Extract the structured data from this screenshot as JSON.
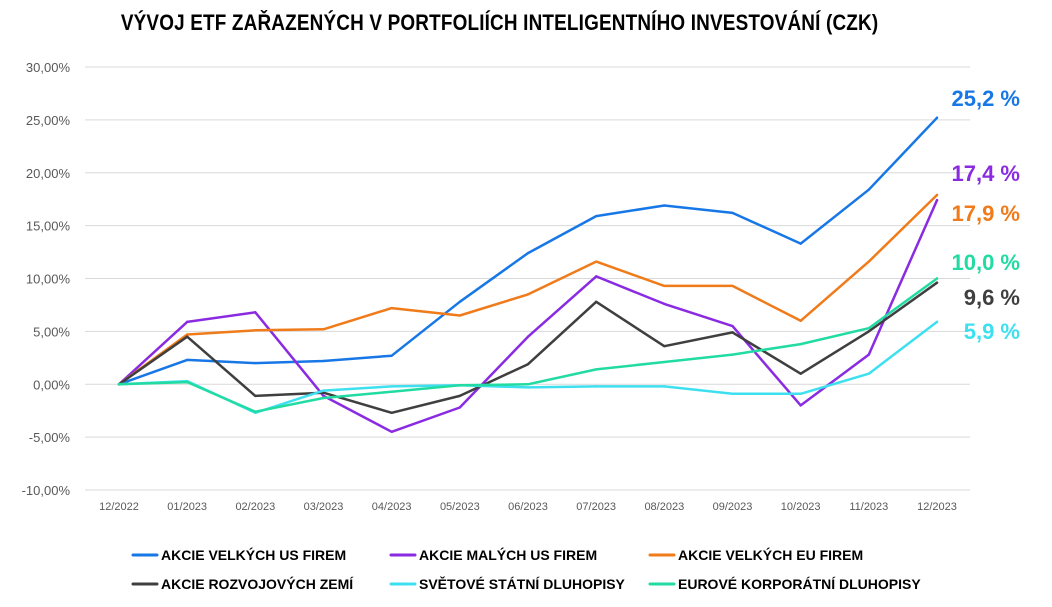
{
  "title": "VÝVOJ ETF ZAŘAZENÝCH V PORTFOLIÍCH INTELIGENTNÍHO INVESTOVÁNÍ (CZK)",
  "chart_data": {
    "type": "line",
    "title": "VÝVOJ ETF ZAŘAZENÝCH V PORTFOLIÍCH INTELIGENTNÍHO INVESTOVÁNÍ (CZK)",
    "xlabel": "",
    "ylabel": "",
    "categories": [
      "12/2022",
      "01/2023",
      "02/2023",
      "03/2023",
      "04/2023",
      "05/2023",
      "06/2023",
      "07/2023",
      "08/2023",
      "09/2023",
      "10/2023",
      "11/2023",
      "12/2023"
    ],
    "ylim": [
      -10,
      30
    ],
    "yticks": [
      30,
      25,
      20,
      15,
      10,
      5,
      0,
      -5,
      -10
    ],
    "ytick_labels": [
      "30,00%",
      "25,00%",
      "20,00%",
      "15,00%",
      "10,00%",
      "5,00%",
      "0,00%",
      "-5,00%",
      "-10,00%"
    ],
    "grid": true,
    "legend_position": "bottom",
    "series": [
      {
        "name": "AKCIE VELKÝCH US FIREM",
        "color": "#1877e6",
        "end_label": "25,2 %",
        "values": [
          0,
          2.3,
          2.0,
          2.2,
          2.7,
          7.8,
          12.4,
          15.9,
          16.9,
          16.2,
          13.3,
          18.4,
          25.2
        ]
      },
      {
        "name": "AKCIE MALÝCH US FIREM",
        "color": "#8a2be2",
        "end_label": "17,4 %",
        "values": [
          0,
          5.9,
          6.8,
          -1.1,
          -4.5,
          -2.2,
          4.5,
          10.2,
          7.6,
          5.5,
          -2.0,
          2.8,
          17.4
        ]
      },
      {
        "name": "AKCIE VELKÝCH EU FIREM",
        "color": "#f07b1a",
        "end_label": "17,9 %",
        "values": [
          0,
          4.7,
          5.1,
          5.2,
          7.2,
          6.5,
          8.5,
          11.6,
          9.3,
          9.3,
          6.0,
          11.6,
          17.9
        ]
      },
      {
        "name": "AKCIE ROZVOJOVÝCH ZEMÍ",
        "color": "#3f3f3f",
        "end_label": "9,6 %",
        "values": [
          0,
          4.5,
          -1.1,
          -0.8,
          -2.7,
          -1.1,
          1.9,
          7.8,
          3.6,
          4.9,
          1.0,
          5.0,
          9.6
        ]
      },
      {
        "name": "SVĚTOVÉ STÁTNÍ DLUHOPISY",
        "color": "#3ee0f0",
        "end_label": "5,9 %",
        "values": [
          0,
          0.3,
          -2.7,
          -0.6,
          -0.2,
          -0.1,
          -0.3,
          -0.2,
          -0.2,
          -0.9,
          -0.9,
          1.0,
          5.9
        ]
      },
      {
        "name": "EUROVÉ KORPORÁTNÍ DLUHOPISY",
        "color": "#22dba2",
        "end_label": "10,0 %",
        "values": [
          0,
          0.2,
          -2.6,
          -1.3,
          -0.7,
          -0.1,
          0.0,
          1.4,
          2.1,
          2.8,
          3.8,
          5.3,
          10.0
        ]
      }
    ]
  }
}
